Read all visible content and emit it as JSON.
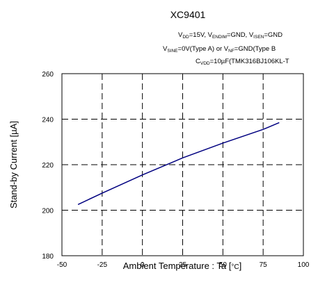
{
  "chart_data": {
    "type": "line",
    "title": "XC9401",
    "conditions": {
      "line1": {
        "v1": "V",
        "v1_sub": "DD",
        "v1_rest": "=15V, V",
        "v2_sub": "ENDIM",
        "v2_rest": "=GND, V",
        "v3_sub": "ISEN",
        "v3_rest": "=GND"
      },
      "line2": {
        "a": "V",
        "a_sub": "SINE",
        "a_rest": "=0V(Type A) or V",
        "b_sub": "NF",
        "b_rest": "=GND(Type B"
      },
      "line3": {
        "a": "C",
        "a_sub": "VDD",
        "a_rest": "=10µF(TMK316BJ106KL-T"
      }
    },
    "xlabel": "Ambient Temperature : Ta [",
    "xlabel_unit": "°C",
    "xlabel_close": "]",
    "ylabel": "Stand-by Current [µA]",
    "xlim": [
      -50,
      100
    ],
    "ylim": [
      180,
      260
    ],
    "x_ticks": [
      "-50",
      "-25",
      "0",
      "25",
      "50",
      "75",
      "100"
    ],
    "y_ticks": [
      "180",
      "200",
      "220",
      "240",
      "260"
    ],
    "grid": true,
    "series": [
      {
        "color": "#000080",
        "x": [
          -40,
          -25,
          0,
          25,
          50,
          75,
          85
        ],
        "y": [
          202.5,
          207.5,
          215.5,
          223,
          229.5,
          235.5,
          238.5
        ]
      }
    ]
  }
}
